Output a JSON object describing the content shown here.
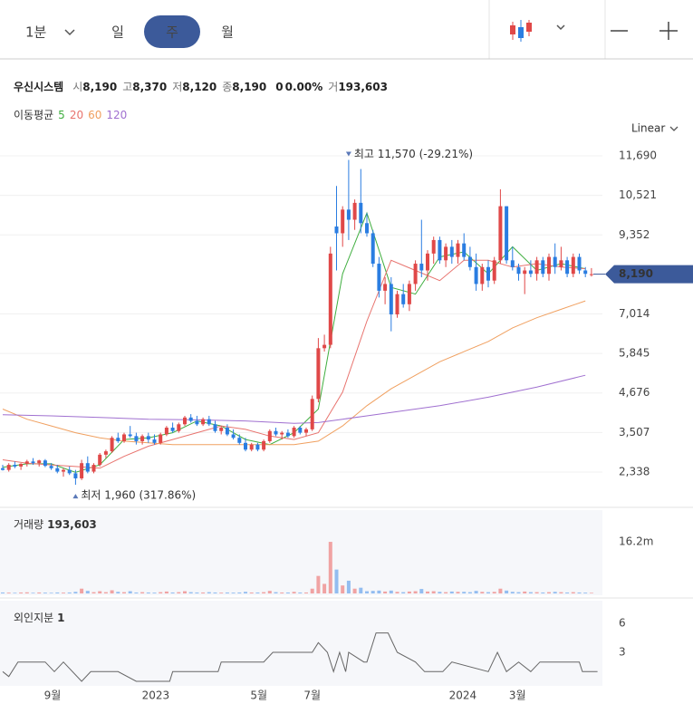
{
  "toolbar": {
    "interval": "1분",
    "tabs": [
      "일",
      "주",
      "월"
    ],
    "active": 1
  },
  "quote": {
    "name": "우신시스템",
    "fields": [
      {
        "label": "시",
        "value": "8,190"
      },
      {
        "label": "고",
        "value": "8,370"
      },
      {
        "label": "저",
        "value": "8,120"
      },
      {
        "label": "종",
        "value": "8,190"
      }
    ],
    "change": "0",
    "change_pct": "0.00%",
    "volume_label": "거",
    "volume": "193,603"
  },
  "chart_data": [
    {
      "type": "candlestick",
      "scale_label": "Linear",
      "up_color": "#e04848",
      "down_color": "#2a7de1",
      "grid": true,
      "ylim": [
        1426,
        12146
      ],
      "yticks": [
        {
          "value": 2338,
          "label": "2,338"
        },
        {
          "value": 3507,
          "label": "3,507"
        },
        {
          "value": 4676,
          "label": "4,676"
        },
        {
          "value": 5845,
          "label": "5,845"
        },
        {
          "value": 7014,
          "label": "7,014"
        },
        {
          "value": 9352,
          "label": "9,352"
        },
        {
          "value": 10521,
          "label": "10,521"
        },
        {
          "value": 11690,
          "label": "11,690"
        }
      ],
      "last_price": {
        "value": 8190,
        "label": "8,190"
      },
      "xticks": [
        {
          "value": 8.2,
          "label": "9월"
        },
        {
          "value": 25.2,
          "label": "2023"
        },
        {
          "value": 42.2,
          "label": "5월"
        },
        {
          "value": 51,
          "label": "7월"
        },
        {
          "value": 75.8,
          "label": "2024"
        },
        {
          "value": 84.8,
          "label": "3월"
        }
      ],
      "annotations": [
        {
          "text": "최고 11,570 (-29.21%)",
          "x": 57,
          "y": 11570,
          "position": "above"
        },
        {
          "text": "최저 1,960 (317.86%)",
          "x": 12,
          "y": 1960,
          "position": "below"
        }
      ],
      "candles": [
        [
          2450,
          2550,
          2380,
          2400
        ],
        [
          2400,
          2600,
          2350,
          2550
        ],
        [
          2550,
          2650,
          2450,
          2500
        ],
        [
          2500,
          2600,
          2400,
          2580
        ],
        [
          2580,
          2700,
          2500,
          2650
        ],
        [
          2650,
          2750,
          2550,
          2600
        ],
        [
          2600,
          2700,
          2500,
          2680
        ],
        [
          2680,
          2720,
          2480,
          2520
        ],
        [
          2520,
          2600,
          2400,
          2450
        ],
        [
          2450,
          2550,
          2300,
          2350
        ],
        [
          2350,
          2450,
          2200,
          2400
        ],
        [
          2400,
          2500,
          2250,
          2300
        ],
        [
          2300,
          2400,
          1960,
          2150
        ],
        [
          2150,
          2700,
          2100,
          2600
        ],
        [
          2600,
          2800,
          2300,
          2350
        ],
        [
          2350,
          2600,
          2300,
          2550
        ],
        [
          2550,
          2900,
          2500,
          2850
        ],
        [
          2850,
          3000,
          2750,
          2950
        ],
        [
          2950,
          3400,
          2900,
          3350
        ],
        [
          3350,
          3500,
          3200,
          3250
        ],
        [
          3250,
          3500,
          3200,
          3450
        ],
        [
          3450,
          3700,
          3350,
          3400
        ],
        [
          3400,
          3500,
          3150,
          3250
        ],
        [
          3250,
          3450,
          3150,
          3400
        ],
        [
          3400,
          3500,
          3200,
          3300
        ],
        [
          3300,
          3450,
          3150,
          3200
        ],
        [
          3200,
          3500,
          3150,
          3450
        ],
        [
          3450,
          3700,
          3400,
          3650
        ],
        [
          3650,
          3800,
          3500,
          3550
        ],
        [
          3550,
          3800,
          3500,
          3750
        ],
        [
          3750,
          4000,
          3700,
          3950
        ],
        [
          3950,
          4050,
          3800,
          3850
        ],
        [
          3850,
          4000,
          3700,
          3750
        ],
        [
          3750,
          3950,
          3700,
          3900
        ],
        [
          3900,
          4000,
          3700,
          3750
        ],
        [
          3750,
          3850,
          3500,
          3550
        ],
        [
          3550,
          3700,
          3450,
          3650
        ],
        [
          3650,
          3750,
          3400,
          3450
        ],
        [
          3450,
          3600,
          3300,
          3350
        ],
        [
          3350,
          3450,
          3150,
          3200
        ],
        [
          3200,
          3350,
          2950,
          3000
        ],
        [
          3000,
          3200,
          2950,
          3150
        ],
        [
          3150,
          3200,
          2950,
          3000
        ],
        [
          3000,
          3300,
          2950,
          3250
        ],
        [
          3250,
          3600,
          3200,
          3550
        ],
        [
          3550,
          3650,
          3400,
          3450
        ],
        [
          3450,
          3550,
          3300,
          3500
        ],
        [
          3500,
          3600,
          3350,
          3400
        ],
        [
          3400,
          3700,
          3350,
          3650
        ],
        [
          3650,
          3700,
          3450,
          3500
        ],
        [
          3500,
          3650,
          3400,
          3600
        ],
        [
          3600,
          4600,
          3550,
          4500
        ],
        [
          4500,
          6300,
          4400,
          6000
        ],
        [
          6000,
          6400,
          5900,
          6100
        ],
        [
          6100,
          9000,
          6000,
          8800
        ],
        [
          9600,
          10800,
          8300,
          9400
        ],
        [
          9400,
          10200,
          9000,
          10100
        ],
        [
          10100,
          11570,
          9200,
          9800
        ],
        [
          9800,
          10400,
          9500,
          10300
        ],
        [
          10300,
          11300,
          9400,
          9700
        ],
        [
          9700,
          10000,
          9300,
          9400
        ],
        [
          9400,
          9500,
          8400,
          8500
        ],
        [
          8500,
          8700,
          7500,
          7700
        ],
        [
          7700,
          8100,
          7300,
          7900
        ],
        [
          7900,
          8100,
          6500,
          7000
        ],
        [
          7000,
          7700,
          6900,
          7600
        ],
        [
          7600,
          7900,
          7200,
          7300
        ],
        [
          7300,
          8000,
          7100,
          7900
        ],
        [
          7900,
          8600,
          7700,
          8500
        ],
        [
          8500,
          9800,
          8100,
          8300
        ],
        [
          8300,
          8900,
          8000,
          8800
        ],
        [
          8800,
          9300,
          8500,
          9200
        ],
        [
          9200,
          9300,
          8500,
          8600
        ],
        [
          8600,
          9100,
          8400,
          9000
        ],
        [
          9000,
          9200,
          8500,
          8700
        ],
        [
          8700,
          9200,
          8500,
          9100
        ],
        [
          9100,
          9400,
          8600,
          8700
        ],
        [
          8700,
          9000,
          8300,
          8400
        ],
        [
          8400,
          8800,
          7700,
          7900
        ],
        [
          7900,
          8500,
          7700,
          8400
        ],
        [
          8400,
          8600,
          7800,
          8000
        ],
        [
          8000,
          8700,
          7900,
          8600
        ],
        [
          8600,
          10700,
          8500,
          10200
        ],
        [
          10200,
          10200,
          8500,
          8600
        ],
        [
          8600,
          9000,
          8300,
          8400
        ],
        [
          8400,
          8500,
          8000,
          8200
        ],
        [
          8200,
          8400,
          7600,
          8300
        ],
        [
          8300,
          8600,
          8100,
          8200
        ],
        [
          8200,
          8700,
          8000,
          8600
        ],
        [
          8600,
          8700,
          8100,
          8200
        ],
        [
          8200,
          8800,
          8000,
          8700
        ],
        [
          8700,
          9100,
          8200,
          8400
        ],
        [
          8400,
          9000,
          8300,
          8600
        ],
        [
          8600,
          8700,
          8100,
          8200
        ],
        [
          8200,
          8800,
          8100,
          8700
        ],
        [
          8700,
          8800,
          8200,
          8300
        ],
        [
          8300,
          8400,
          8100,
          8200
        ],
        [
          8190,
          8370,
          8120,
          8190
        ]
      ],
      "ma_label": "이동평균",
      "series": [
        {
          "name": "5",
          "color": "#3fae3f",
          "x": [
            0,
            4,
            8,
            12,
            16,
            20,
            24,
            28,
            32,
            36,
            40,
            44,
            48,
            52,
            56,
            60,
            64,
            68,
            72,
            76,
            80,
            84,
            88,
            92,
            96
          ],
          "values": [
            2480,
            2580,
            2580,
            2330,
            2550,
            3300,
            3350,
            3500,
            3850,
            3700,
            3300,
            3150,
            3500,
            4200,
            8200,
            10000,
            7800,
            7600,
            8700,
            8850,
            8200,
            9000,
            8300,
            8500,
            8350
          ]
        },
        {
          "name": "20",
          "color": "#e8736e",
          "x": [
            0,
            4,
            8,
            12,
            16,
            20,
            24,
            28,
            32,
            36,
            40,
            44,
            48,
            52,
            56,
            60,
            64,
            68,
            72,
            76,
            80,
            84,
            88,
            92,
            96
          ],
          "values": [
            2700,
            2600,
            2550,
            2500,
            2450,
            2800,
            3100,
            3300,
            3500,
            3700,
            3600,
            3400,
            3300,
            3500,
            4700,
            6800,
            8600,
            8300,
            8000,
            8600,
            8600,
            8400,
            8500,
            8400,
            8350
          ]
        },
        {
          "name": "60",
          "color": "#f0a060",
          "x": [
            0,
            4,
            8,
            12,
            16,
            20,
            24,
            28,
            32,
            36,
            40,
            44,
            48,
            52,
            56,
            60,
            64,
            68,
            72,
            76,
            80,
            84,
            88,
            92,
            96
          ],
          "values": [
            4200,
            3900,
            3700,
            3500,
            3350,
            3250,
            3200,
            3150,
            3150,
            3150,
            3150,
            3150,
            3150,
            3250,
            3700,
            4300,
            4800,
            5200,
            5600,
            5900,
            6200,
            6600,
            6900,
            7150,
            7400
          ]
        },
        {
          "name": "120",
          "color": "#a070d0",
          "x": [
            0,
            8,
            16,
            24,
            32,
            40,
            48,
            52,
            56,
            60,
            64,
            72,
            80,
            88,
            96
          ],
          "values": [
            4030,
            4000,
            3950,
            3900,
            3880,
            3850,
            3780,
            3800,
            3900,
            4000,
            4100,
            4300,
            4550,
            4850,
            5200
          ]
        }
      ]
    },
    {
      "type": "bar",
      "title": "거래량",
      "title_value": "193,603",
      "up_color": "#f0a3a3",
      "down_color": "#93bdf0",
      "ylim": [
        0,
        25600000
      ],
      "yticks": [
        {
          "value": 16200000,
          "label": "16.2m"
        }
      ],
      "values": [
        300000,
        250000,
        200000,
        300000,
        350000,
        200000,
        300000,
        250000,
        200000,
        300000,
        250000,
        300000,
        500000,
        1500000,
        800000,
        400000,
        700000,
        400000,
        1000000,
        500000,
        400000,
        700000,
        300000,
        400000,
        300000,
        250000,
        400000,
        600000,
        300000,
        400000,
        700000,
        400000,
        300000,
        300000,
        400000,
        300000,
        250000,
        300000,
        250000,
        300000,
        500000,
        300000,
        300000,
        400000,
        800000,
        400000,
        300000,
        300000,
        500000,
        300000,
        300000,
        1500000,
        5500000,
        3000000,
        16200000,
        7500000,
        2500000,
        4000000,
        1500000,
        1800000,
        700000,
        800000,
        900000,
        600000,
        900000,
        500000,
        400000,
        600000,
        700000,
        1400000,
        600000,
        700000,
        500000,
        400000,
        600000,
        500000,
        500000,
        400000,
        800000,
        500000,
        400000,
        500000,
        1500000,
        900000,
        500000,
        400000,
        600000,
        400000,
        400000,
        300000,
        400000,
        500000,
        400000,
        300000,
        400000,
        300000,
        250000,
        193603
      ]
    },
    {
      "type": "line",
      "title": "외인지분",
      "title_value": "1",
      "color": "#666666",
      "ylim": [
        -0.28,
        8.15
      ],
      "yticks": [
        3,
        6
      ],
      "x": [
        0,
        1,
        2.5,
        7,
        8.5,
        10,
        13,
        14.5,
        19,
        22,
        27.5,
        28,
        35.5,
        36,
        43,
        44.5,
        51,
        52,
        53.5,
        54.5,
        55.5,
        56.5,
        57,
        59.5,
        60,
        61.5,
        63.5,
        65,
        68,
        69.5,
        72.5,
        74,
        80,
        81.5,
        83,
        85,
        87,
        88.5,
        95,
        95.5,
        98
      ],
      "values": [
        1,
        0.5,
        2,
        2,
        1,
        2,
        0,
        1,
        1,
        0,
        0,
        1,
        1,
        2,
        2,
        3,
        3,
        4,
        3,
        1,
        3,
        1,
        3,
        2,
        2,
        5,
        5,
        3,
        2,
        1,
        1,
        2,
        1,
        3,
        1,
        2,
        1,
        2,
        2,
        1,
        1
      ]
    }
  ]
}
